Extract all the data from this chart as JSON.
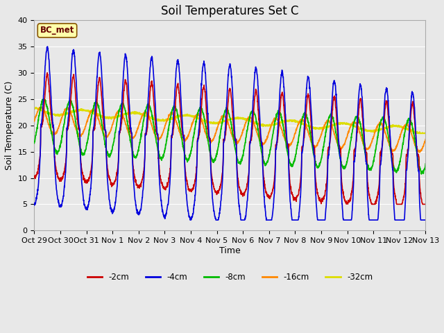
{
  "title": "Soil Temperatures Set C",
  "xlabel": "Time",
  "ylabel": "Soil Temperature (C)",
  "ylim": [
    0,
    40
  ],
  "colors": {
    "-2cm": "#cc0000",
    "-4cm": "#0000dd",
    "-8cm": "#00bb00",
    "-16cm": "#ff8800",
    "-32cm": "#dddd00"
  },
  "x_tick_labels": [
    "Oct 29",
    "Oct 30",
    "Oct 31",
    "Nov 1",
    "Nov 2",
    "Nov 3",
    "Nov 4",
    "Nov 5",
    "Nov 6",
    "Nov 7",
    "Nov 8",
    "Nov 9",
    "Nov 10",
    "Nov 11",
    "Nov 12",
    "Nov 13"
  ],
  "annotation_text": "BC_met",
  "annotation_bg": "#ffffaa",
  "annotation_border": "#885500",
  "plot_bg": "#e8e8e8",
  "fig_bg": "#e8e8e8",
  "grid_color": "#ffffff",
  "title_fontsize": 12,
  "label_fontsize": 9,
  "tick_fontsize": 8
}
